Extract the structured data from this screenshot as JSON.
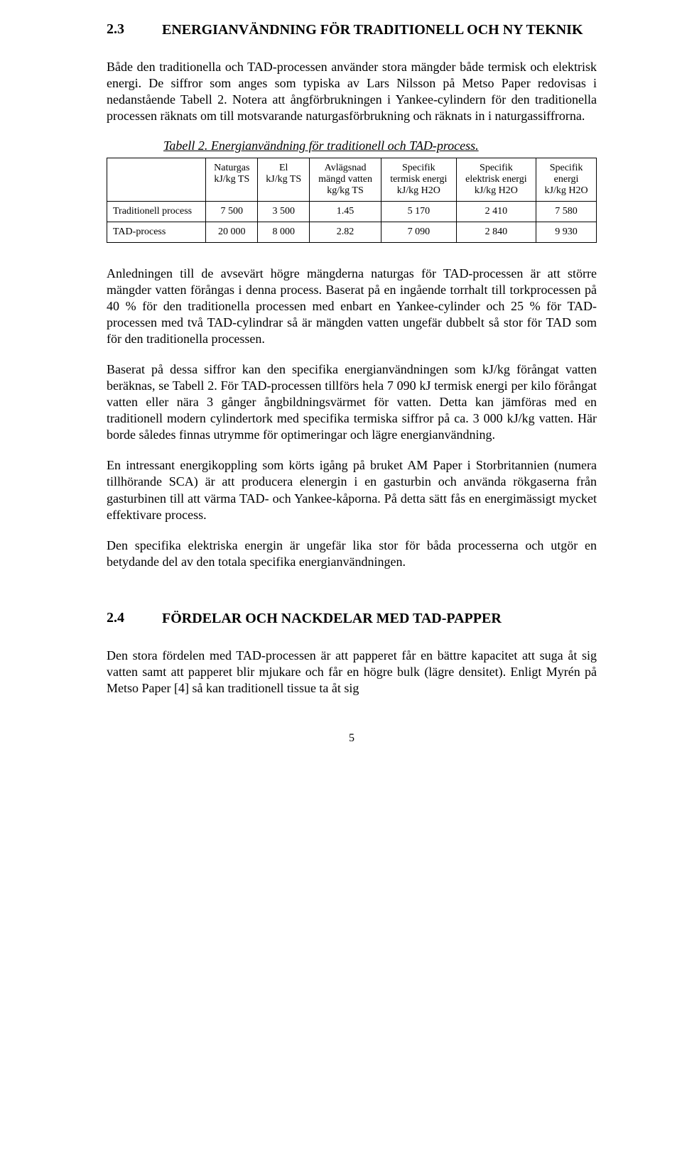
{
  "section23": {
    "number": "2.3",
    "title": "ENERGIANVÄNDNING FÖR TRADITIONELL OCH NY TEKNIK",
    "para1": "Både den traditionella och TAD-processen använder stora mängder både termisk och elektrisk energi. De siffror som anges som typiska av Lars Nilsson på Metso Paper redovisas i nedanstående Tabell 2. Notera att ångförbrukningen i Yankee-cylindern för den traditionella processen räknats om till motsvarande naturgasförbrukning och räknats in i naturgassiffrorna."
  },
  "table": {
    "caption": "Tabell 2. Energianvändning för traditionell och TAD-process.",
    "columns": [
      "",
      "Naturgas\nkJ/kg TS",
      "El\nkJ/kg TS",
      "Avlägsnad\nmängd vatten\nkg/kg TS",
      "Specifik\ntermisk energi\nkJ/kg H2O",
      "Specifik\nelektrisk energi\nkJ/kg H2O",
      "Specifik\nenergi\nkJ/kg H2O"
    ],
    "rows": [
      {
        "label": "Traditionell process",
        "values": [
          "7 500",
          "3 500",
          "1.45",
          "5 170",
          "2 410",
          "7 580"
        ]
      },
      {
        "label": "TAD-process",
        "values": [
          "20 000",
          "8 000",
          "2.82",
          "7 090",
          "2 840",
          "9 930"
        ]
      }
    ]
  },
  "afterTable": {
    "p1": "Anledningen till de avsevärt högre mängderna naturgas för TAD-processen är att större mängder vatten förångas i denna process. Baserat på en ingående torrhalt till torkprocessen på 40 % för den traditionella processen med enbart en Yankee-cylinder och 25 % för TAD-processen med två TAD-cylindrar så är mängden vatten ungefär dubbelt så stor för TAD som för den traditionella processen.",
    "p2": "Baserat på dessa siffror kan den specifika energianvändningen som kJ/kg förångat vatten beräknas, se Tabell 2. För TAD-processen tillförs hela 7 090 kJ termisk energi per kilo förångat vatten eller nära 3 gånger ångbildningsvärmet för vatten. Detta kan jämföras med en traditionell modern cylindertork med specifika termiska siffror på ca. 3 000 kJ/kg vatten. Här borde således finnas utrymme för optimeringar och lägre energianvändning.",
    "p3": "En intressant energikoppling som körts igång på bruket AM Paper i Storbritannien (numera tillhörande SCA) är att producera elenergin i en gasturbin och använda rökgaserna från gasturbinen till att värma TAD- och Yankee-kåporna. På detta sätt fås en energimässigt mycket effektivare process.",
    "p4": "Den specifika elektriska energin är ungefär lika stor för båda processerna och utgör en betydande del av den totala specifika energianvändningen."
  },
  "section24": {
    "number": "2.4",
    "title": "FÖRDELAR OCH NACKDELAR MED TAD-PAPPER",
    "p1": "Den stora fördelen med TAD-processen är att papperet får en bättre kapacitet att suga åt sig vatten samt att papperet blir mjukare och får en högre bulk (lägre densitet). Enligt Myrén på Metso Paper [4] så kan traditionell tissue ta åt sig"
  },
  "pageNumber": "5"
}
